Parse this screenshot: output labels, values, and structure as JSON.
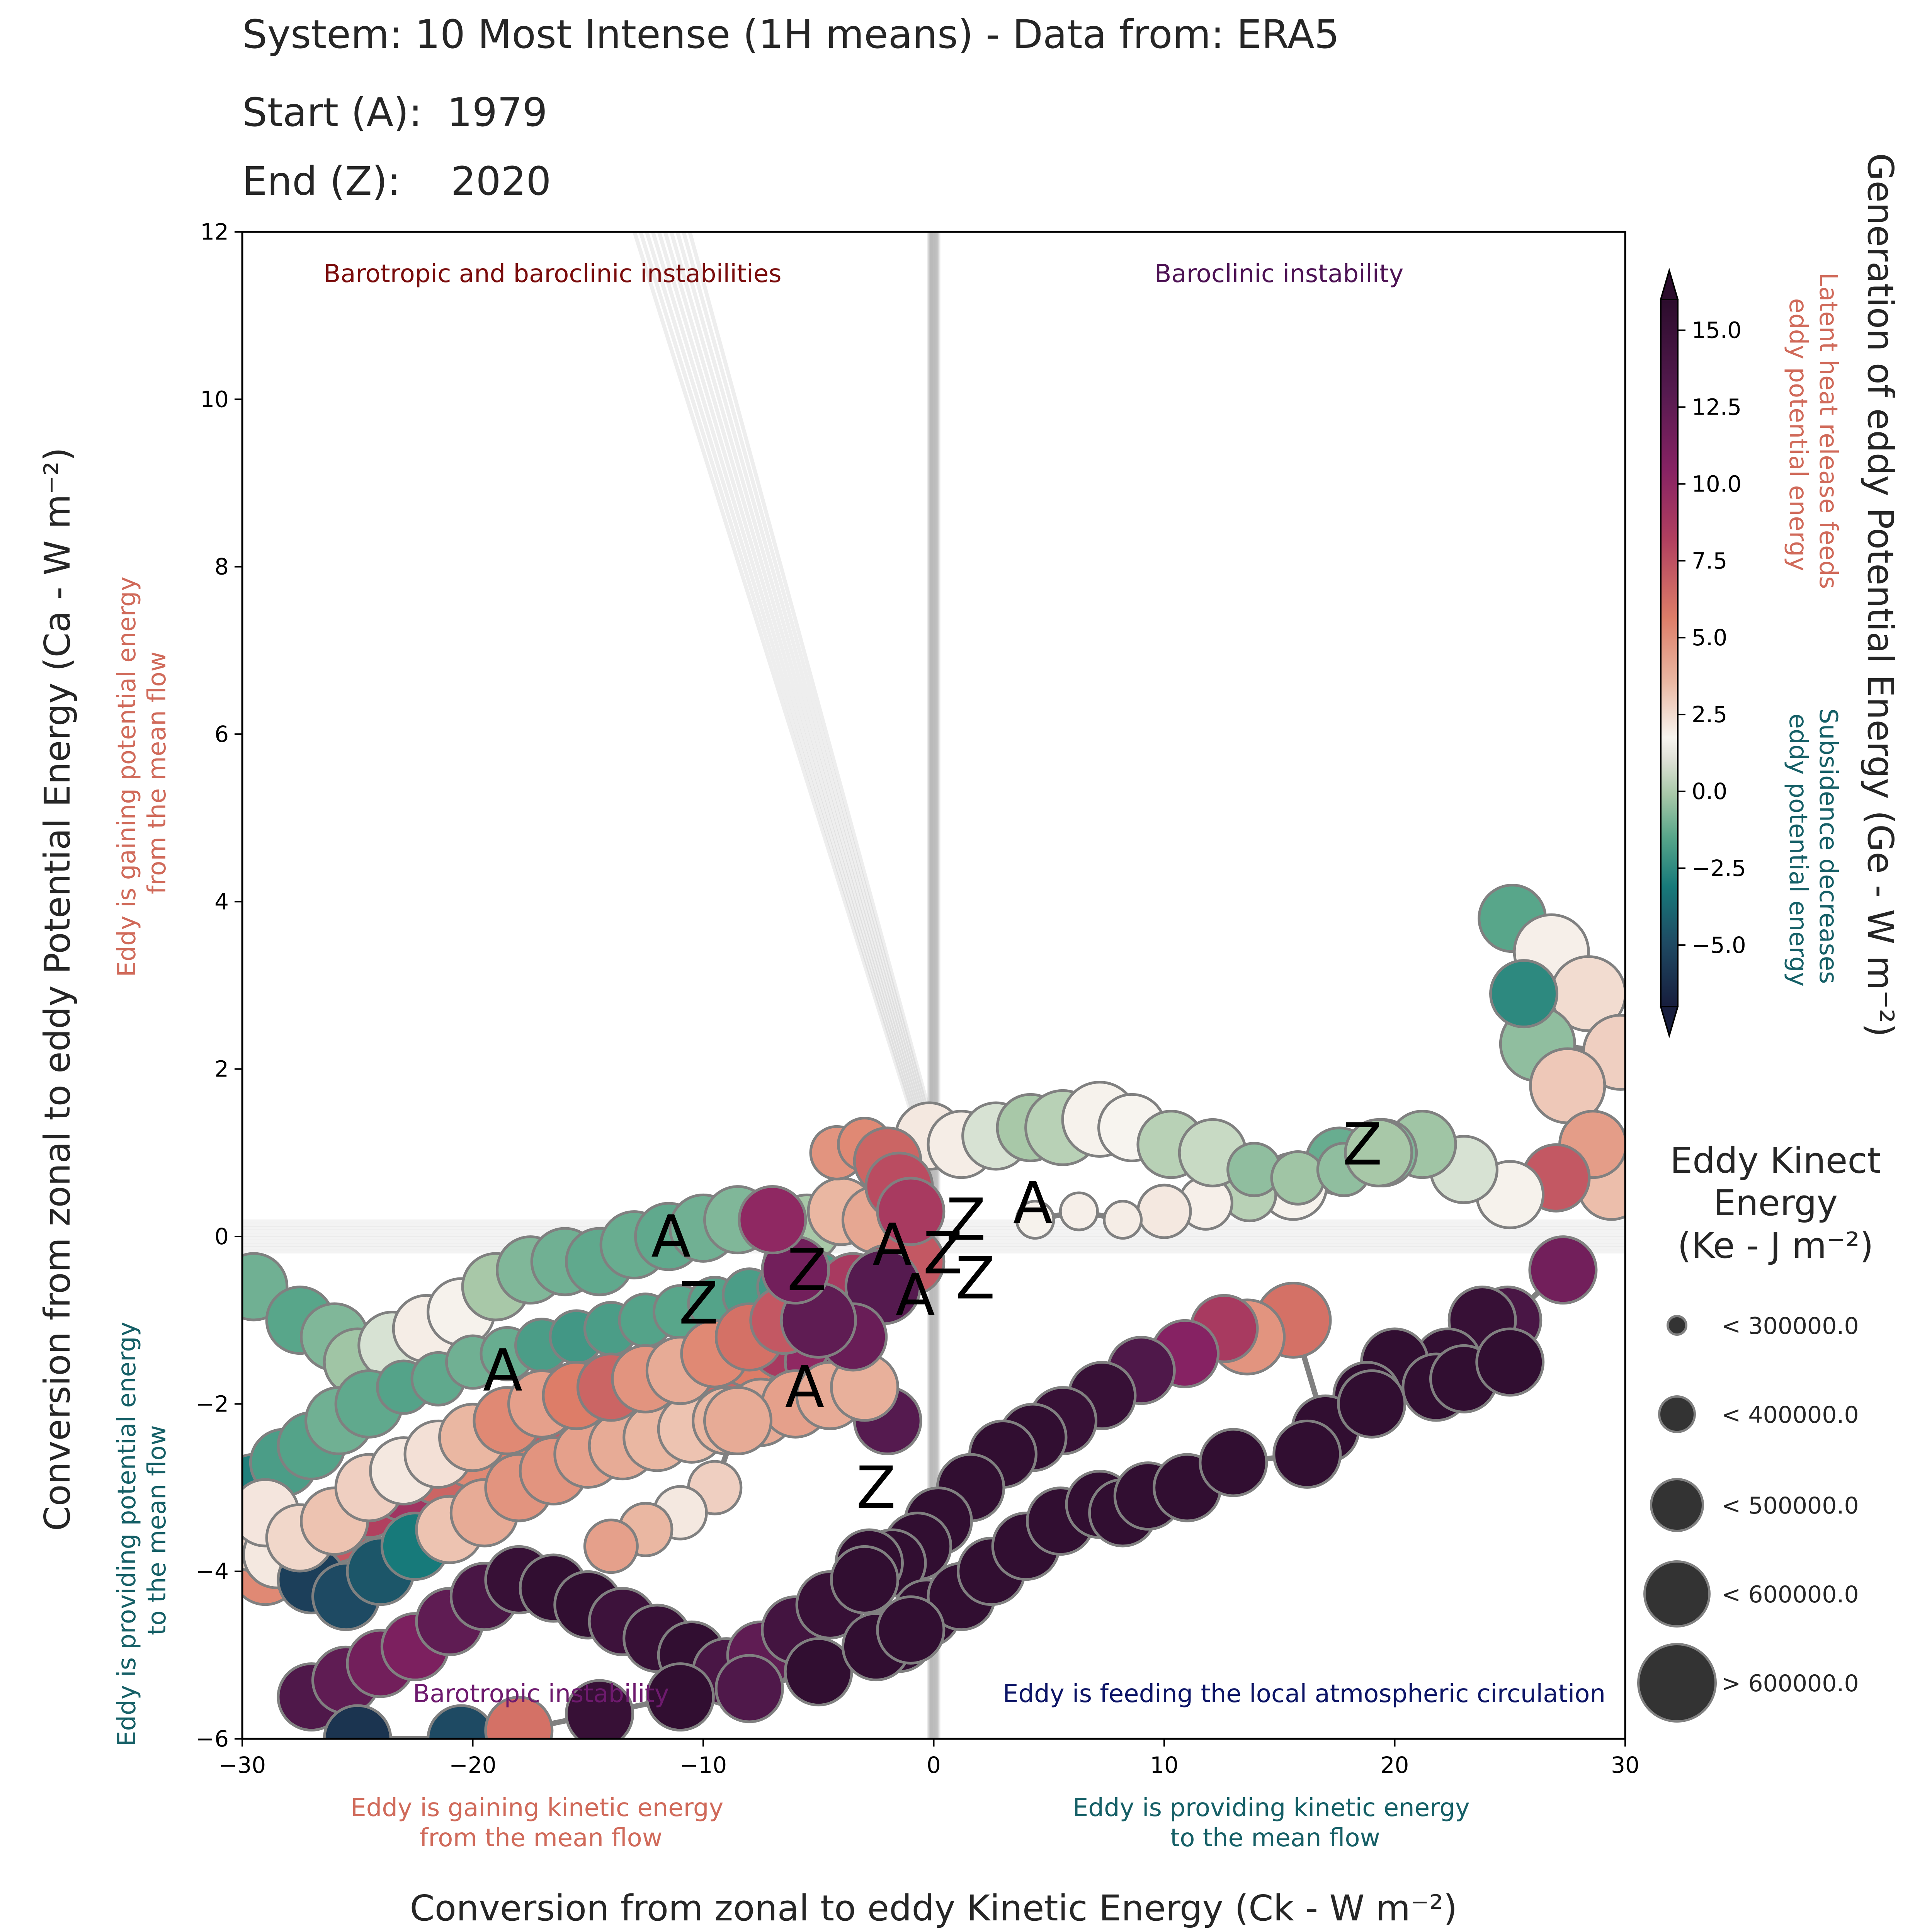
{
  "header": {
    "line1": "System: 10 Most Intense (1H means) - Data from: ERA5",
    "start_label": "Start (A):  1979",
    "end_label": "End (Z):    2020"
  },
  "chart_data": {
    "type": "scatter",
    "xlabel": "Conversion from zonal to eddy Kinetic Energy (Ck -  W m⁻²)",
    "ylabel": "Conversion from zonal to eddy Potential Energy (Ca -  W m⁻²)",
    "xlim": [
      -30,
      30
    ],
    "ylim": [
      -6,
      12
    ],
    "x_ticks": [
      "−30",
      "−20",
      "−10",
      "0",
      "10",
      "20",
      "30"
    ],
    "y_ticks": [
      "−6",
      "−4",
      "−2",
      "0",
      "2",
      "4",
      "6",
      "8",
      "10",
      "12"
    ],
    "grid": false,
    "quadrant_labels": {
      "top_left": "Barotropic and baroclinic instabilities",
      "top_right": "Baroclinic instability",
      "bottom_left": "Barotropic instability",
      "bottom_right": "Eddy is feeding the local atmospheric circulation"
    },
    "x_annotations": {
      "left": [
        "Eddy is gaining kinetic energy",
        "from the mean flow"
      ],
      "right": [
        "Eddy is providing kinetic energy",
        "to the mean flow"
      ]
    },
    "y_annotations": {
      "top": [
        "Eddy is gaining potential energy",
        "from the mean flow"
      ],
      "bottom": [
        "Eddy is providing potential energy",
        "to the mean flow"
      ]
    },
    "colorbar": {
      "label": "Generation of eddy Potential Energy (Ge -  W m⁻²)",
      "range": [
        -7,
        16
      ],
      "ticks": [
        -5.0,
        -2.5,
        0.0,
        2.5,
        5.0,
        7.5,
        10.0,
        12.5,
        15.0
      ],
      "tick_labels": [
        "−5.0",
        "−2.5",
        "0.0",
        "2.5",
        "5.0",
        "7.5",
        "10.0",
        "12.5",
        "15.0"
      ],
      "positive_note": [
        "Latent heat release feeds",
        "eddy potential energy"
      ],
      "negative_note": [
        "Subsidence decreases",
        "eddy potential energy"
      ]
    },
    "size_legend": {
      "title": [
        "Eddy Kinect",
        "Energy",
        "(Ke -  J m⁻²)"
      ],
      "labels": [
        "< 300000.0",
        "< 400000.0",
        "< 500000.0",
        "< 600000.0",
        "> 600000.0"
      ]
    },
    "start_end_markers": [
      {
        "letter": "A",
        "x": -11.4,
        "y": 0.0
      },
      {
        "letter": "Z",
        "x": -10.2,
        "y": -0.8
      },
      {
        "letter": "Z",
        "x": -5.5,
        "y": -0.4
      },
      {
        "letter": "A",
        "x": -5.6,
        "y": -1.8
      },
      {
        "letter": "A",
        "x": -18.7,
        "y": -1.6
      },
      {
        "letter": "A",
        "x": -1.8,
        "y": -0.1
      },
      {
        "letter": "A",
        "x": -0.8,
        "y": -0.7
      },
      {
        "letter": "Z",
        "x": 0.4,
        "y": -0.2
      },
      {
        "letter": "Z",
        "x": 1.4,
        "y": 0.2
      },
      {
        "letter": "Z",
        "x": 1.8,
        "y": -0.5
      },
      {
        "letter": "A",
        "x": 4.3,
        "y": 0.4
      },
      {
        "letter": "Z",
        "x": 18.6,
        "y": 1.1
      },
      {
        "letter": "Z",
        "x": -2.5,
        "y": -3.0
      }
    ],
    "series": [
      {
        "x": [
          25.1,
          26.8,
          28.4,
          29.8,
          26.2,
          25.6,
          27.5,
          29.4,
          28.6,
          27.0,
          25.0,
          23.0,
          21.2,
          19.5,
          17.6,
          15.6,
          13.7,
          11.8,
          10.0,
          8.2,
          6.3,
          4.4
        ],
        "y": [
          3.8,
          3.4,
          2.9,
          2.2,
          2.3,
          2.9,
          1.8,
          0.6,
          1.1,
          0.7,
          0.5,
          0.8,
          1.1,
          1.0,
          0.9,
          0.6,
          0.5,
          0.4,
          0.3,
          0.2,
          0.3,
          0.2
        ],
        "c": [
          -1.5,
          0.2,
          1.0,
          1.5,
          -0.8,
          -2.5,
          1.8,
          2.2,
          3.6,
          6.5,
          0.1,
          -0.2,
          -0.6,
          -1.0,
          -1.3,
          0.1,
          -0.4,
          0.2,
          0.5,
          0.3,
          0.2,
          0.1
        ],
        "s": [
          3,
          4,
          4,
          4,
          4,
          3,
          4,
          3,
          3,
          3,
          3,
          3,
          3,
          3,
          3,
          3,
          2,
          2,
          2,
          1,
          1,
          1
        ]
      },
      {
        "x": [
          27.3,
          24.9,
          23.8,
          22.3,
          20.0,
          18.8,
          17.0,
          15.6,
          13.6,
          12.6,
          10.9,
          9.0,
          7.3,
          5.6,
          4.3,
          3.0,
          1.6,
          0.2,
          -0.7,
          -1.8,
          -2.8
        ],
        "y": [
          -0.4,
          -1.0,
          -1.0,
          -1.5,
          -1.5,
          -1.9,
          -2.3,
          -1.0,
          -1.2,
          -1.1,
          -1.4,
          -1.6,
          -1.9,
          -2.2,
          -2.4,
          -2.6,
          -3.0,
          -3.4,
          -3.7,
          -3.9,
          -3.9
        ],
        "c": [
          11.0,
          13.5,
          15.0,
          15.3,
          15.5,
          15.5,
          15.5,
          5.5,
          4.0,
          8.0,
          10.0,
          13.0,
          15.0,
          15.0,
          15.5,
          15.5,
          15.5,
          15.5,
          15.5,
          15.5,
          15.5
        ],
        "s": [
          3,
          3,
          3,
          3,
          3,
          3,
          3,
          4,
          4,
          3,
          3,
          3,
          3,
          3,
          3,
          3,
          3,
          3,
          3,
          3,
          3
        ]
      },
      {
        "x": [
          -0.2,
          1.2,
          2.7,
          4.2,
          5.6,
          7.2,
          8.6,
          10.3,
          12.1,
          13.9,
          15.8,
          17.8,
          19.3
        ],
        "y": [
          1.2,
          1.1,
          1.2,
          1.3,
          1.3,
          1.4,
          1.3,
          1.1,
          1.0,
          0.8,
          0.7,
          0.8,
          1.0
        ],
        "c": [
          0.5,
          0.3,
          -0.2,
          -0.5,
          -0.4,
          0.1,
          0.0,
          -0.4,
          -0.3,
          -0.8,
          -0.6,
          -0.8,
          -0.5
        ],
        "s": [
          3,
          3,
          3,
          3,
          4,
          4,
          3,
          3,
          3,
          2,
          2,
          2,
          3
        ]
      },
      {
        "x": [
          -1.5,
          -0.3,
          1.2,
          2.5,
          4.0,
          5.5,
          7.2,
          8.2,
          9.3,
          11.0,
          13.0,
          16.2,
          19.0,
          21.8,
          23.0,
          25.0
        ],
        "y": [
          -4.8,
          -4.5,
          -4.3,
          -4.0,
          -3.7,
          -3.4,
          -3.2,
          -3.3,
          -3.1,
          -3.0,
          -2.7,
          -2.6,
          -2.0,
          -1.8,
          -1.7,
          -1.5
        ],
        "c": [
          15.5,
          15.5,
          15.5,
          15.5,
          15.5,
          15.5,
          15.5,
          15.5,
          15.5,
          15.5,
          15.5,
          15.5,
          15.5,
          15.5,
          15.5,
          15.5
        ],
        "s": [
          3,
          3,
          3,
          3,
          3,
          3,
          3,
          3,
          3,
          3,
          3,
          3,
          3,
          3,
          3,
          3
        ]
      },
      {
        "x": [
          -29.5,
          -27.5,
          -26.0,
          -25.0,
          -23.5,
          -22.0,
          -20.5,
          -19.0,
          -17.5,
          -16.0,
          -14.5,
          -13.0,
          -11.5,
          -10.0,
          -8.5,
          -7.0,
          -5.5,
          -4.0,
          -2.5
        ],
        "y": [
          -0.6,
          -1.0,
          -1.2,
          -1.5,
          -1.3,
          -1.1,
          -0.9,
          -0.6,
          -0.4,
          -0.3,
          -0.3,
          -0.1,
          0.0,
          0.1,
          0.2,
          0.2,
          0.1,
          0.3,
          0.2
        ],
        "c": [
          -1.2,
          -1.5,
          -1.0,
          -0.6,
          -0.2,
          0.3,
          0.1,
          -0.5,
          -1.0,
          -1.2,
          -1.4,
          -1.3,
          -1.4,
          -1.2,
          -1.0,
          -0.8,
          -0.5,
          2.5,
          3.2
        ],
        "s": [
          3,
          3,
          3,
          3,
          3,
          3,
          3,
          3,
          3,
          3,
          3,
          3,
          3,
          3,
          3,
          3,
          3,
          3,
          3
        ]
      },
      {
        "x": [
          -29.5,
          -28.2,
          -27.0,
          -25.8,
          -24.5,
          -23.0,
          -21.5,
          -20.0,
          -18.5,
          -17.0,
          -15.5,
          -14.0,
          -12.5,
          -11.0,
          -9.5,
          -8.0,
          -6.5,
          -5.0,
          -3.5,
          -2.2
        ],
        "y": [
          -3.0,
          -2.7,
          -2.5,
          -2.2,
          -2.0,
          -1.8,
          -1.7,
          -1.5,
          -1.4,
          -1.3,
          -1.2,
          -1.1,
          -1.0,
          -0.9,
          -0.8,
          -0.7,
          -0.6,
          -0.5,
          -0.5,
          -0.4
        ],
        "c": [
          -2.8,
          -1.8,
          -1.6,
          -1.2,
          -1.4,
          -1.6,
          -1.4,
          -1.2,
          -1.3,
          -1.8,
          -2.0,
          -1.8,
          -1.6,
          -1.5,
          -1.6,
          -1.8,
          -2.0,
          -1.8,
          -1.5,
          -1.0
        ],
        "s": [
          3,
          3,
          3,
          3,
          3,
          2,
          2,
          2,
          2,
          2,
          2,
          2,
          2,
          2,
          2,
          2,
          2,
          2,
          1,
          1
        ]
      },
      {
        "x": [
          -29.0,
          -27.5,
          -26.0,
          -24.5,
          -23.0,
          -21.5,
          -20.0,
          -18.5,
          -17.0,
          -15.5,
          -14.0,
          -12.5,
          -11.0,
          -9.5,
          -8.0,
          -6.5,
          -5.0,
          -3.5,
          -2.0
        ],
        "y": [
          -4.0,
          -3.8,
          -3.5,
          -3.2,
          -3.0,
          -2.8,
          -2.6,
          -2.4,
          -2.2,
          -2.0,
          -1.8,
          -1.7,
          -1.6,
          -1.5,
          -1.4,
          -1.3,
          -1.5,
          -1.7,
          -2.2
        ],
        "c": [
          4.5,
          5.5,
          6.5,
          7.5,
          8.5,
          6.0,
          4.5,
          5.0,
          6.5,
          8.0,
          9.0,
          10.5,
          5.5,
          6.0,
          5.0,
          8.0,
          9.5,
          11.0,
          12.5
        ],
        "s": [
          3,
          3,
          3,
          3,
          3,
          3,
          3,
          3,
          3,
          3,
          3,
          3,
          3,
          3,
          3,
          3,
          3,
          3,
          3
        ]
      },
      {
        "x": [
          -27.0,
          -25.5,
          -24.0,
          -22.5,
          -21.0,
          -19.5,
          -18.0,
          -16.5,
          -15.0,
          -13.5,
          -12.0,
          -10.5,
          -9.0,
          -7.5,
          -6.0,
          -4.5,
          -3.0
        ],
        "y": [
          -5.5,
          -5.3,
          -5.1,
          -4.9,
          -4.6,
          -4.3,
          -4.1,
          -4.2,
          -4.4,
          -4.6,
          -4.8,
          -5.0,
          -5.2,
          -5.0,
          -4.7,
          -4.4,
          -4.1
        ],
        "c": [
          13.0,
          12.0,
          11.0,
          10.5,
          12.0,
          13.5,
          15.0,
          15.5,
          15.5,
          14.5,
          15.0,
          15.5,
          13.5,
          12.0,
          14.0,
          15.0,
          15.5
        ],
        "s": [
          3,
          3,
          3,
          3,
          3,
          3,
          3,
          3,
          3,
          3,
          3,
          3,
          3,
          3,
          3,
          3,
          3
        ]
      },
      {
        "x": [
          -29.5,
          -28.5,
          -27.0,
          -25.5,
          -24.0,
          -22.5,
          -21.0,
          -19.5,
          -18.0,
          -16.5,
          -15.0,
          -13.5,
          -12.0,
          -10.5,
          -9.0,
          -7.5,
          -6.0,
          -4.5,
          -3.0
        ],
        "y": [
          -3.6,
          -3.8,
          -4.1,
          -4.3,
          -4.0,
          -3.7,
          -3.5,
          -3.3,
          -3.0,
          -2.8,
          -2.6,
          -2.5,
          -2.4,
          -2.3,
          -2.2,
          -2.1,
          -2.0,
          -1.9,
          -1.8
        ],
        "c": [
          1.0,
          0.5,
          -5.5,
          -5.0,
          -4.5,
          -3.0,
          2.0,
          3.0,
          4.0,
          4.0,
          3.5,
          3.0,
          2.5,
          2.0,
          2.5,
          3.0,
          3.5,
          3.0,
          2.8
        ],
        "s": [
          3,
          3,
          3,
          3,
          3,
          3,
          3,
          3,
          3,
          3,
          3,
          3,
          3,
          3,
          3,
          3,
          3,
          3,
          3
        ]
      },
      {
        "x": [
          -29.0,
          -27.5,
          -26.0,
          -24.5,
          -23.0,
          -21.5,
          -20.0,
          -18.5,
          -17.0,
          -15.5,
          -14.0,
          -12.5,
          -11.0,
          -9.5,
          -8.0,
          -6.5,
          -5.0,
          -3.5,
          -2.0,
          -1.0
        ],
        "y": [
          -3.3,
          -3.6,
          -3.4,
          -3.0,
          -2.8,
          -2.6,
          -2.4,
          -2.2,
          -2.0,
          -1.9,
          -1.8,
          -1.7,
          -1.6,
          -1.4,
          -1.2,
          -1.0,
          -0.8,
          -0.6,
          -0.5,
          -0.3
        ],
        "c": [
          0.6,
          1.2,
          2.0,
          1.5,
          0.5,
          0.8,
          2.5,
          4.5,
          3.5,
          5.0,
          6.0,
          4.0,
          3.0,
          4.5,
          5.5,
          6.5,
          7.5,
          8.0,
          7.0,
          6.5
        ],
        "s": [
          3,
          3,
          3,
          3,
          3,
          3,
          3,
          3,
          3,
          3,
          3,
          3,
          3,
          3,
          3,
          3,
          3,
          3,
          3,
          3
        ]
      },
      {
        "x": [
          -4.2,
          -3.0,
          -2.0,
          -1.5,
          -1.0,
          -2.2,
          -3.5,
          -5.0,
          -6.0,
          -7.0,
          -8.5,
          -9.5,
          -11.0,
          -12.5,
          -14.0
        ],
        "y": [
          1.0,
          1.1,
          0.9,
          0.6,
          0.3,
          -0.6,
          -1.2,
          -1.0,
          -0.4,
          0.2,
          -2.2,
          -3.0,
          -3.3,
          -3.5,
          -3.7
        ],
        "c": [
          4.0,
          4.5,
          6.0,
          7.0,
          8.0,
          12.5,
          11.5,
          12.0,
          11.0,
          9.5,
          3.0,
          1.5,
          0.5,
          2.5,
          3.5
        ],
        "s": [
          2,
          2,
          3,
          3,
          3,
          4,
          3,
          4,
          3,
          3,
          3,
          2,
          2,
          2,
          2
        ]
      },
      {
        "x": [
          -25.0,
          -20.5,
          -18.0,
          -14.5,
          -11.0,
          -8.0,
          -5.0,
          -2.5,
          -1.0
        ],
        "y": [
          -6.0,
          -6.0,
          -5.9,
          -5.7,
          -5.5,
          -5.4,
          -5.2,
          -4.9,
          -4.7
        ],
        "c": [
          -6.0,
          -5.0,
          5.5,
          15.0,
          15.5,
          13.0,
          15.5,
          15.5,
          15.5
        ],
        "s": [
          3,
          3,
          3,
          3,
          3,
          3,
          3,
          3,
          3
        ]
      }
    ]
  }
}
